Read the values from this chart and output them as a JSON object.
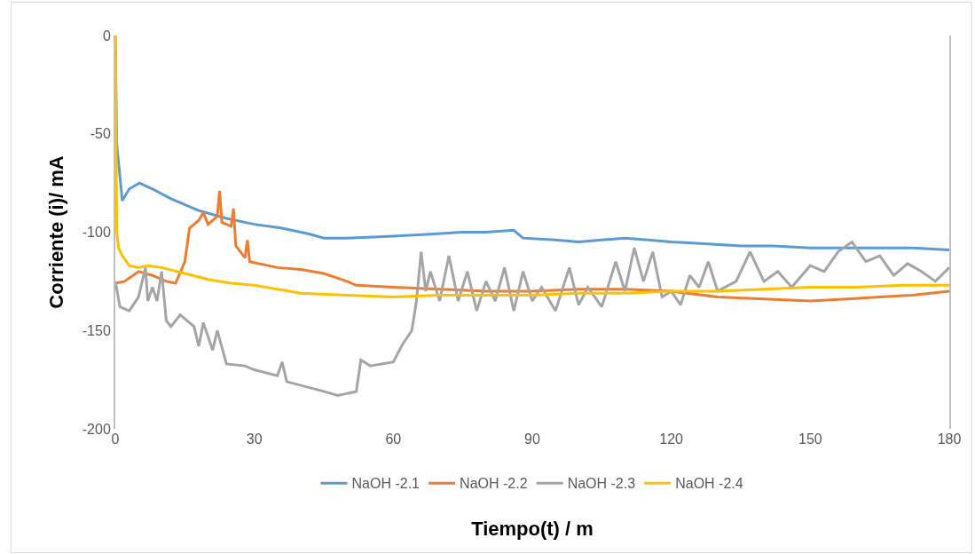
{
  "chart_data": {
    "type": "line",
    "xlabel": "Tiempo(t) / m",
    "ylabel": "Corriente (i)/ mA",
    "xlim": [
      0,
      180
    ],
    "xticks": [
      0,
      30,
      60,
      90,
      120,
      150,
      180
    ],
    "ylim": [
      -200,
      0
    ],
    "yticks": [
      -200,
      -150,
      -100,
      -50,
      0
    ],
    "legend": "bottom",
    "marker": "none",
    "line_style": "solid",
    "series": [
      {
        "name": "NaOH -2.1",
        "color": "#5b9bd5",
        "x": [
          0,
          0.3,
          1.5,
          3,
          5.2,
          8,
          12,
          18,
          24,
          30,
          36,
          42,
          45,
          50,
          60,
          68,
          75,
          80,
          86,
          88,
          95,
          100,
          105,
          110,
          115,
          120,
          128,
          135,
          142,
          150,
          158,
          165,
          172,
          180
        ],
        "values": [
          0,
          -55,
          -84,
          -78,
          -75,
          -78,
          -83,
          -89,
          -93,
          -96,
          -98,
          -101,
          -103,
          -103,
          -102,
          -101,
          -100,
          -100,
          -99,
          -103,
          -104,
          -105,
          -104,
          -103,
          -104,
          -105,
          -106,
          -107,
          -107,
          -108,
          -108,
          -108,
          -108,
          -109
        ]
      },
      {
        "name": "NaOH -2.2",
        "color": "#ed7d31",
        "x": [
          0,
          2,
          5,
          8,
          11,
          13,
          15,
          16,
          18,
          19,
          20,
          22,
          22.5,
          23,
          25,
          25.5,
          26,
          28,
          28.5,
          29,
          35,
          40,
          45,
          50,
          52,
          60,
          70,
          80,
          90,
          100,
          110,
          120,
          130,
          140,
          150,
          158,
          165,
          172,
          180
        ],
        "values": [
          -126,
          -125,
          -120,
          -122,
          -125,
          -126,
          -115,
          -98,
          -94,
          -90,
          -96,
          -92,
          -79,
          -95,
          -97,
          -88,
          -107,
          -113,
          -104,
          -115,
          -118,
          -119,
          -121,
          -125,
          -127,
          -128,
          -129,
          -130,
          -130,
          -129,
          -129,
          -130,
          -133,
          -134,
          -135,
          -134,
          -133,
          -132,
          -130
        ]
      },
      {
        "name": "NaOH -2.3",
        "color": "#a5a5a5",
        "x": [
          0,
          1,
          3,
          5,
          6.5,
          7,
          8,
          9,
          10,
          11,
          12,
          14,
          17,
          18,
          19,
          21,
          22,
          24,
          28,
          30,
          35,
          36,
          37,
          45,
          48,
          52,
          53,
          55,
          60,
          62,
          64,
          65,
          66,
          67,
          68,
          70,
          72,
          74,
          76,
          78,
          80,
          82,
          84,
          86,
          88,
          90,
          92,
          95,
          98,
          100,
          102,
          105,
          108,
          110,
          112,
          114,
          116,
          118,
          120,
          122,
          124,
          126,
          128,
          130,
          134,
          137,
          140,
          143,
          146,
          150,
          153,
          156,
          159,
          162,
          165,
          168,
          171,
          174,
          177,
          180
        ],
        "values": [
          -125,
          -138,
          -140,
          -133,
          -118,
          -135,
          -128,
          -135,
          -120,
          -145,
          -148,
          -142,
          -148,
          -158,
          -146,
          -160,
          -150,
          -167,
          -168,
          -170,
          -173,
          -166,
          -176,
          -181,
          -183,
          -181,
          -165,
          -168,
          -166,
          -157,
          -150,
          -135,
          -110,
          -130,
          -120,
          -135,
          -112,
          -135,
          -120,
          -140,
          -125,
          -135,
          -118,
          -140,
          -120,
          -135,
          -128,
          -140,
          -118,
          -137,
          -128,
          -138,
          -115,
          -130,
          -108,
          -125,
          -110,
          -133,
          -130,
          -137,
          -122,
          -128,
          -115,
          -130,
          -125,
          -110,
          -125,
          -120,
          -128,
          -117,
          -120,
          -110,
          -105,
          -115,
          -112,
          -122,
          -116,
          -120,
          -125,
          -118
        ]
      },
      {
        "name": "NaOH -2.4",
        "color": "#ffc000",
        "x": [
          0,
          0.3,
          0.7,
          1.5,
          3,
          5,
          7,
          10,
          15,
          20,
          25,
          30,
          35,
          40,
          50,
          60,
          70,
          80,
          90,
          100,
          110,
          120,
          130,
          140,
          150,
          160,
          170,
          180
        ],
        "values": [
          0,
          -100,
          -108,
          -112,
          -117,
          -118,
          -117,
          -118,
          -121,
          -124,
          -126,
          -127,
          -129,
          -131,
          -132,
          -133,
          -132,
          -132,
          -132,
          -131,
          -131,
          -130,
          -130,
          -129,
          -128,
          -128,
          -127,
          -127
        ]
      }
    ]
  }
}
